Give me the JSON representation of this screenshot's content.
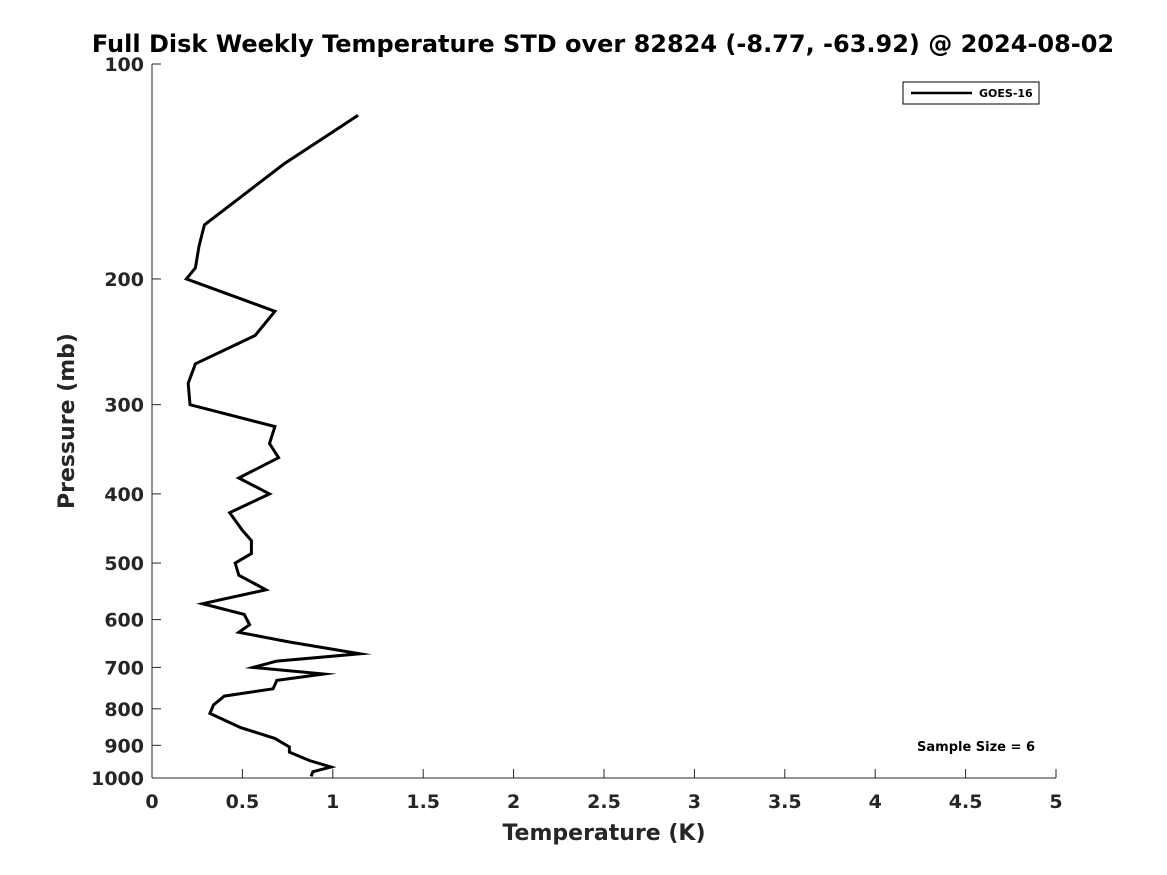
{
  "chart_data": {
    "type": "line",
    "title": "Full Disk Weekly Temperature STD over 82824 (-8.77, -63.92) @ 2024-08-02",
    "xlabel": "Temperature (K)",
    "ylabel": "Pressure (mb)",
    "xlim": [
      0,
      5
    ],
    "ylim": [
      100,
      1000
    ],
    "y_scale": "log",
    "y_reversed": true,
    "grid": false,
    "x_ticks": [
      "0",
      "0.5",
      "1",
      "1.5",
      "2",
      "2.5",
      "3",
      "3.5",
      "4",
      "4.5",
      "5"
    ],
    "y_ticks": [
      "100",
      "200",
      "300",
      "400",
      "500",
      "600",
      "700",
      "800",
      "900",
      "1000"
    ],
    "legend": {
      "position": "top-right",
      "entries": [
        "GOES-16"
      ]
    },
    "annotation": "Sample Size = 6",
    "series": [
      {
        "name": "GOES-16",
        "color": "#000000",
        "points": [
          [
            1.14,
            118
          ],
          [
            0.73,
            138
          ],
          [
            0.29,
            168
          ],
          [
            0.26,
            180
          ],
          [
            0.24,
            193
          ],
          [
            0.19,
            200
          ],
          [
            0.68,
            222
          ],
          [
            0.57,
            240
          ],
          [
            0.24,
            263
          ],
          [
            0.2,
            280
          ],
          [
            0.21,
            300
          ],
          [
            0.68,
            322
          ],
          [
            0.65,
            340
          ],
          [
            0.7,
            356
          ],
          [
            0.48,
            380
          ],
          [
            0.65,
            400
          ],
          [
            0.43,
            425
          ],
          [
            0.5,
            450
          ],
          [
            0.55,
            465
          ],
          [
            0.55,
            485
          ],
          [
            0.46,
            500
          ],
          [
            0.48,
            520
          ],
          [
            0.63,
            545
          ],
          [
            0.28,
            570
          ],
          [
            0.51,
            590
          ],
          [
            0.54,
            610
          ],
          [
            0.48,
            625
          ],
          [
            0.76,
            645
          ],
          [
            1.15,
            670
          ],
          [
            0.69,
            686
          ],
          [
            0.56,
            700
          ],
          [
            0.95,
            715
          ],
          [
            0.69,
            730
          ],
          [
            0.67,
            750
          ],
          [
            0.4,
            768
          ],
          [
            0.34,
            790
          ],
          [
            0.32,
            812
          ],
          [
            0.49,
            850
          ],
          [
            0.68,
            880
          ],
          [
            0.76,
            905
          ],
          [
            0.76,
            920
          ],
          [
            0.87,
            945
          ],
          [
            0.99,
            965
          ],
          [
            0.89,
            980
          ],
          [
            0.88,
            995
          ]
        ]
      }
    ]
  }
}
